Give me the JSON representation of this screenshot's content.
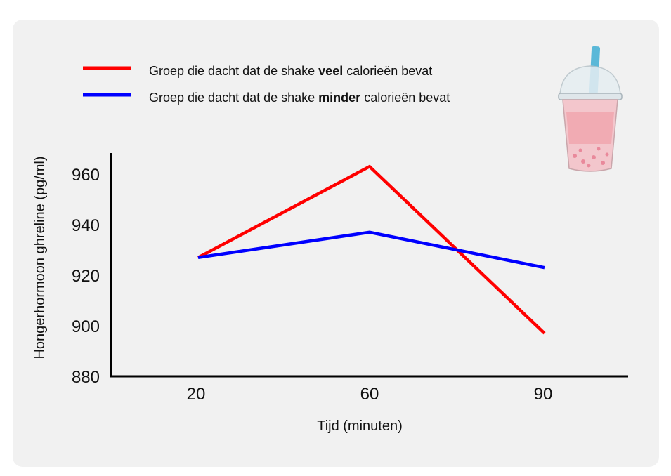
{
  "chart_data": {
    "type": "line",
    "categories": [
      "20",
      "60",
      "90"
    ],
    "series": [
      {
        "name_parts": [
          "Groep die dacht dat de shake ",
          "veel",
          " calorieën bevat"
        ],
        "color": "#ff0000",
        "values": [
          927,
          963,
          897
        ]
      },
      {
        "name_parts": [
          "Groep die dacht dat de shake ",
          "minder",
          " calorieën bevat"
        ],
        "color": "#0000ff",
        "values": [
          927,
          937,
          923
        ]
      }
    ],
    "xlabel": "Tijd (minuten)",
    "ylabel": "Hongerhormoon ghreline (pg/ml)",
    "ylim": [
      880,
      960
    ],
    "yticks": [
      880,
      900,
      920,
      940,
      960
    ],
    "legend_position": "top-left",
    "grid": false
  },
  "decoration": {
    "icon": "bubble-tea-cup-icon"
  }
}
